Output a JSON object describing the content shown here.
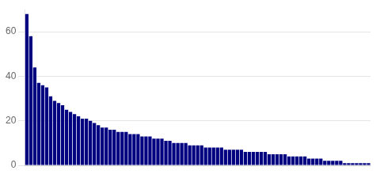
{
  "chart_data": {
    "type": "bar",
    "categories": [
      null,
      null,
      null,
      null,
      null,
      null,
      null,
      null,
      null,
      null,
      null,
      null,
      null,
      null,
      null,
      null,
      null,
      null,
      null,
      null,
      null,
      null,
      null,
      null,
      null,
      null,
      null,
      null,
      null,
      null,
      null,
      null,
      null,
      null,
      null,
      null,
      null,
      null,
      null,
      null,
      null,
      null,
      null,
      null,
      null,
      null,
      null,
      null,
      null,
      null,
      null,
      null,
      null,
      null,
      null,
      null,
      null,
      null,
      null,
      null,
      null,
      null,
      null,
      null,
      null,
      null,
      null,
      null,
      null,
      null,
      null,
      null,
      null,
      null,
      null,
      null,
      null,
      null,
      null,
      null,
      null,
      null,
      null,
      null,
      null,
      null,
      null
    ],
    "values": [
      68,
      58,
      44,
      37,
      36,
      35,
      31,
      29,
      28,
      27,
      25,
      24,
      23,
      22,
      21,
      21,
      20,
      19,
      18,
      17,
      17,
      16,
      16,
      15,
      15,
      15,
      14,
      14,
      14,
      13,
      13,
      13,
      12,
      12,
      12,
      11,
      11,
      10,
      10,
      10,
      10,
      9,
      9,
      9,
      9,
      8,
      8,
      8,
      8,
      8,
      7,
      7,
      7,
      7,
      7,
      6,
      6,
      6,
      6,
      6,
      6,
      5,
      5,
      5,
      5,
      5,
      4,
      4,
      4,
      4,
      4,
      3,
      3,
      3,
      3,
      2,
      2,
      2,
      2,
      2,
      1,
      1,
      1,
      1,
      1,
      1,
      1
    ],
    "color": "#000080",
    "ylim": [
      0,
      70
    ],
    "yticks": [
      0,
      20,
      40,
      60
    ],
    "grid": true,
    "tick_labels": "y"
  }
}
